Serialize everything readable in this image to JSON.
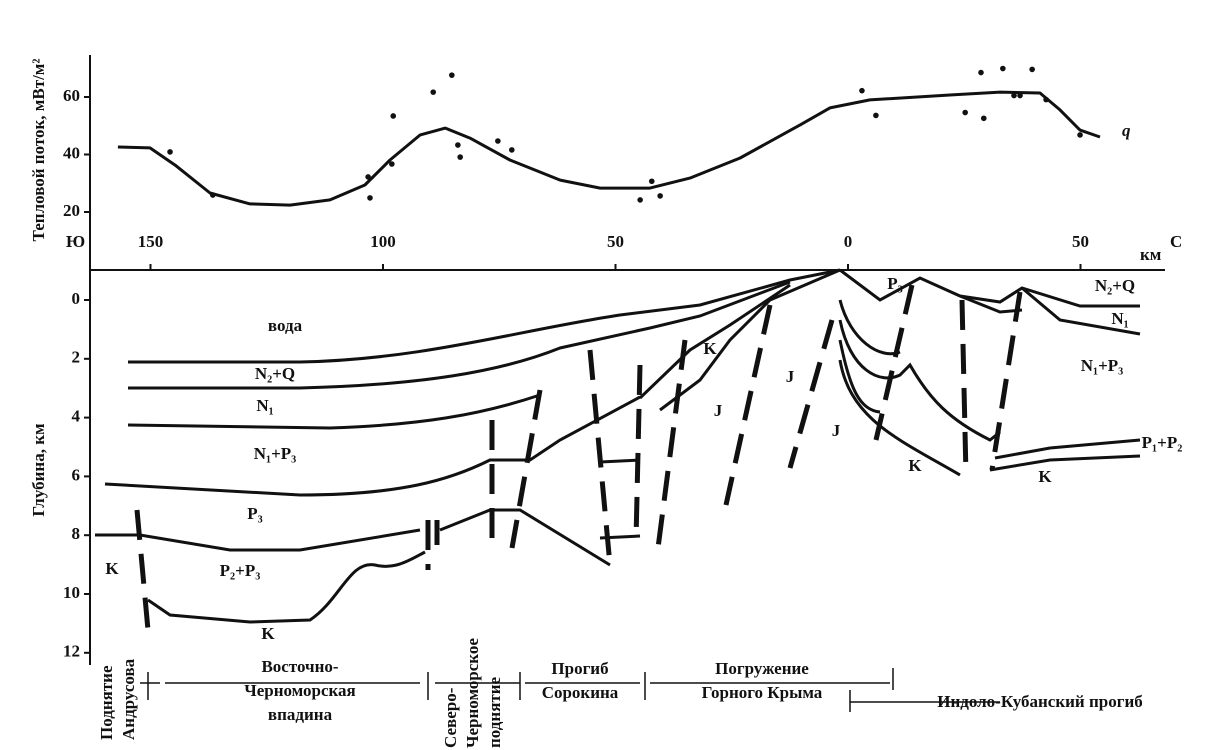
{
  "heat_flow": {
    "type": "line",
    "y_label": "Тепловой поток, мВт/м²",
    "series_label": "q",
    "x": [
      157.0,
      150.1,
      144.7,
      137.2,
      128.6,
      120.0,
      111.4,
      103.9,
      98.5,
      92.0,
      86.6,
      81.3,
      72.7,
      61.9,
      53.3,
      42.6,
      34.0,
      23.2,
      10.3,
      3.9,
      -4.7,
      -21.9,
      -32.7,
      -41.3,
      -45.6,
      -49.9,
      -54.2
    ],
    "values": [
      42.6,
      42.3,
      36.3,
      26.6,
      22.8,
      22.4,
      24.2,
      29.4,
      38.1,
      46.8,
      49.2,
      45.7,
      38.1,
      31.1,
      28.3,
      28.3,
      31.8,
      38.8,
      50.3,
      56.2,
      59.0,
      60.7,
      61.7,
      61.4,
      55.5,
      48.5,
      46.1
    ],
    "points": {
      "x": [
        145.8,
        136.6,
        103.2,
        102.8,
        97.8,
        98.1,
        89.2,
        85.2,
        83.9,
        83.4,
        75.3,
        72.3,
        44.7,
        42.2,
        40.4,
        -3.0,
        -6.0,
        -25.2,
        -28.6,
        -29.2,
        -33.3,
        -35.7,
        -37.0,
        -39.6,
        -42.6,
        -49.9
      ],
      "values": [
        40.9,
        25.9,
        32.2,
        24.9,
        53.4,
        36.7,
        61.7,
        67.6,
        43.3,
        39.1,
        44.7,
        41.6,
        24.2,
        30.7,
        25.6,
        62.2,
        53.6,
        54.6,
        68.5,
        52.6,
        69.9,
        60.5,
        60.5,
        69.6,
        59.1,
        46.8
      ]
    },
    "yticks": [
      20,
      40,
      60
    ]
  },
  "distance_axis": {
    "unit": "км",
    "south": "Ю",
    "north": "С",
    "ticks": [
      150,
      100,
      50,
      0,
      {
        "value": -50,
        "label": "50"
      }
    ]
  },
  "depth_axis": {
    "label": "Глубина, км",
    "ticks": [
      0,
      2,
      4,
      6,
      8,
      10,
      12
    ]
  },
  "layers": [
    "вода",
    "N₂+Q",
    "N₁",
    "N₁+P₃",
    "P₃",
    "P₂+P₃",
    "K",
    "K",
    "K",
    "J",
    "J",
    "J",
    "K",
    "P₃",
    "N₂+Q",
    "N₁",
    "N₁+P₃",
    "P₁+P₂",
    "K"
  ],
  "regions": [
    {
      "lines": [
        "Поднятие",
        "Андрусова"
      ]
    },
    {
      "lines": [
        "Восточно-",
        "Черноморская",
        "впадина"
      ]
    },
    {
      "lines": [
        "Северо-",
        "Черноморское",
        "поднятие"
      ]
    },
    {
      "lines": [
        "Прогиб",
        "Сорокина"
      ]
    },
    {
      "lines": [
        "Погружение",
        "Горного Крыма"
      ]
    },
    {
      "lines": [
        "Индоло-Кубанский прогиб"
      ]
    }
  ]
}
